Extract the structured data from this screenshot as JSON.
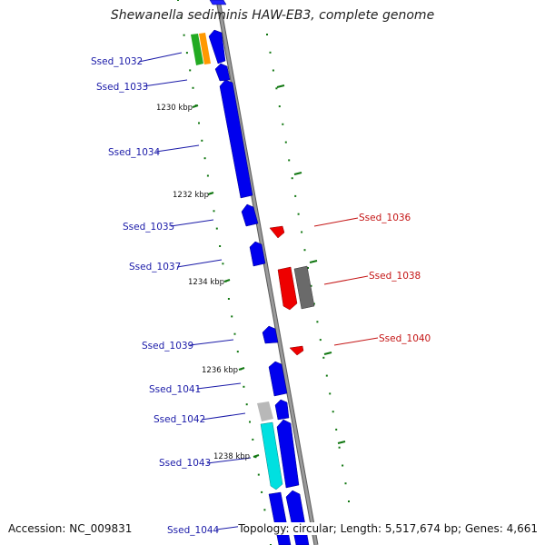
{
  "title": "Shewanella sediminis HAW-EB3, complete genome",
  "footer": {
    "accession": "Accession: NC_009831",
    "summary": "Topology: circular; Length: 5,517,674 bp; Genes: 4,661"
  },
  "colors": {
    "forward_gene": "#0000ee",
    "reverse_gene": "#ee0000",
    "forward_label": "#1a1aa8",
    "reverse_label": "#c41414",
    "pseudogene": "#6a6a6a",
    "light_gene": "#b8b8b8",
    "cyan_gene": "#00e0e0",
    "green_gene": "#22aa22",
    "orange_gene": "#ff9900",
    "backbone": "#8a8a8a",
    "ticks": "#117711"
  },
  "scale_labels": [
    "1230 kbp",
    "1232 kbp",
    "1234 kbp",
    "1236 kbp",
    "1238 kbp"
  ],
  "gene_labels_left": [
    "Ssed_1032",
    "Ssed_1033",
    "Ssed_1034",
    "Ssed_1035",
    "Ssed_1037",
    "Ssed_1039",
    "Ssed_1041",
    "Ssed_1042",
    "Ssed_1043",
    "Ssed_1044"
  ],
  "gene_labels_right": [
    "Ssed_1036",
    "Ssed_1038",
    "Ssed_1040"
  ]
}
